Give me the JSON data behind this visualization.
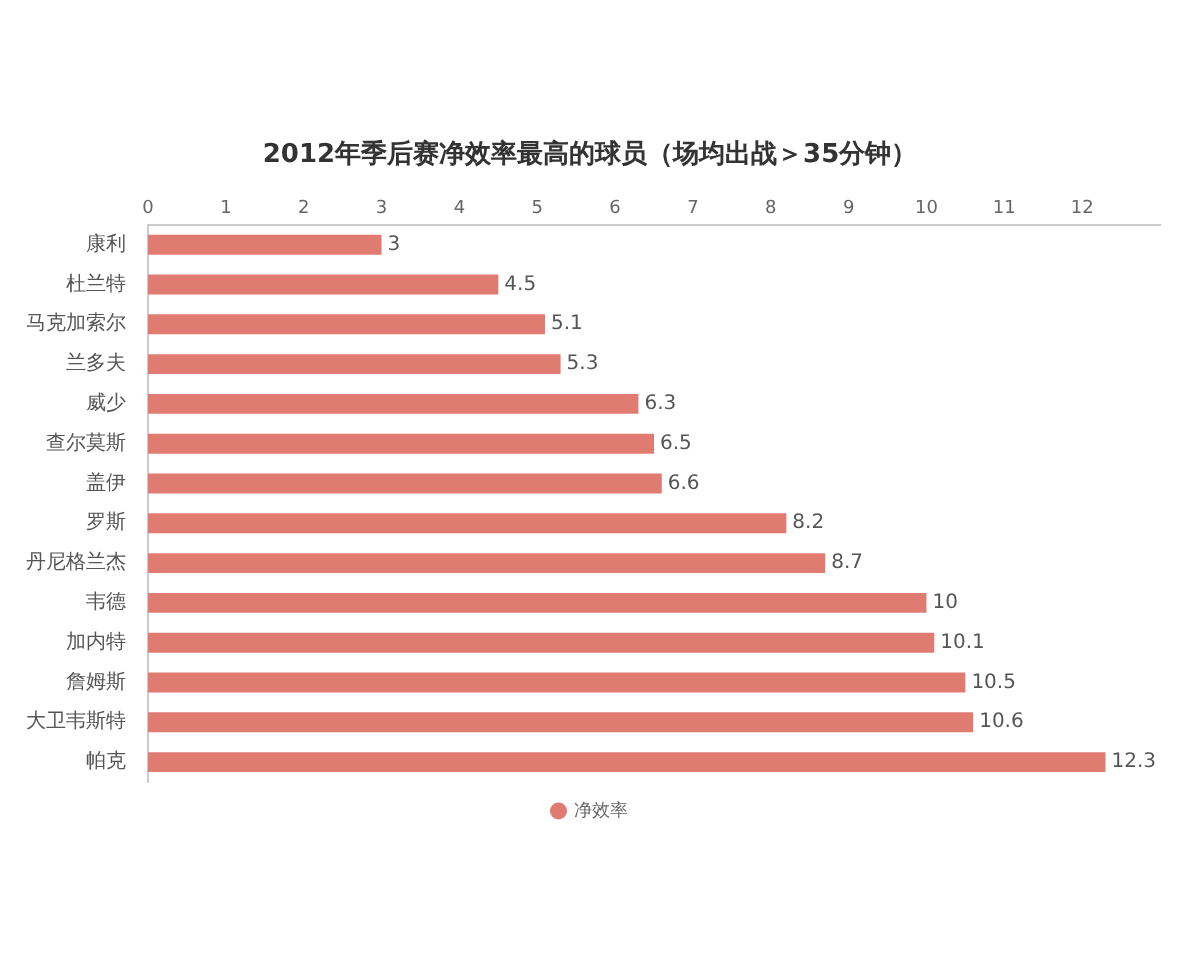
{
  "chart_data": {
    "type": "bar",
    "orientation": "horizontal",
    "title": "2012年季后赛净效率最高的球员（场均出战＞35分钟）",
    "categories": [
      "康利",
      "杜兰特",
      "马克加索尔",
      "兰多夫",
      "威少",
      "查尔莫斯",
      "盖伊",
      "罗斯",
      "丹尼格兰杰",
      "韦德",
      "加内特",
      "詹姆斯",
      "大卫韦斯特",
      "帕克"
    ],
    "series": [
      {
        "name": "净效率",
        "color": "#e07b72",
        "values": [
          3,
          4.5,
          5.1,
          5.3,
          6.3,
          6.5,
          6.6,
          8.2,
          8.7,
          10,
          10.1,
          10.5,
          10.6,
          12.3
        ]
      }
    ],
    "xlim": [
      0,
      13
    ],
    "xticks": [
      0,
      1,
      2,
      3,
      4,
      5,
      6,
      7,
      8,
      9,
      10,
      11,
      12
    ],
    "grid": false,
    "legend": "bottom",
    "data_labels": true
  }
}
